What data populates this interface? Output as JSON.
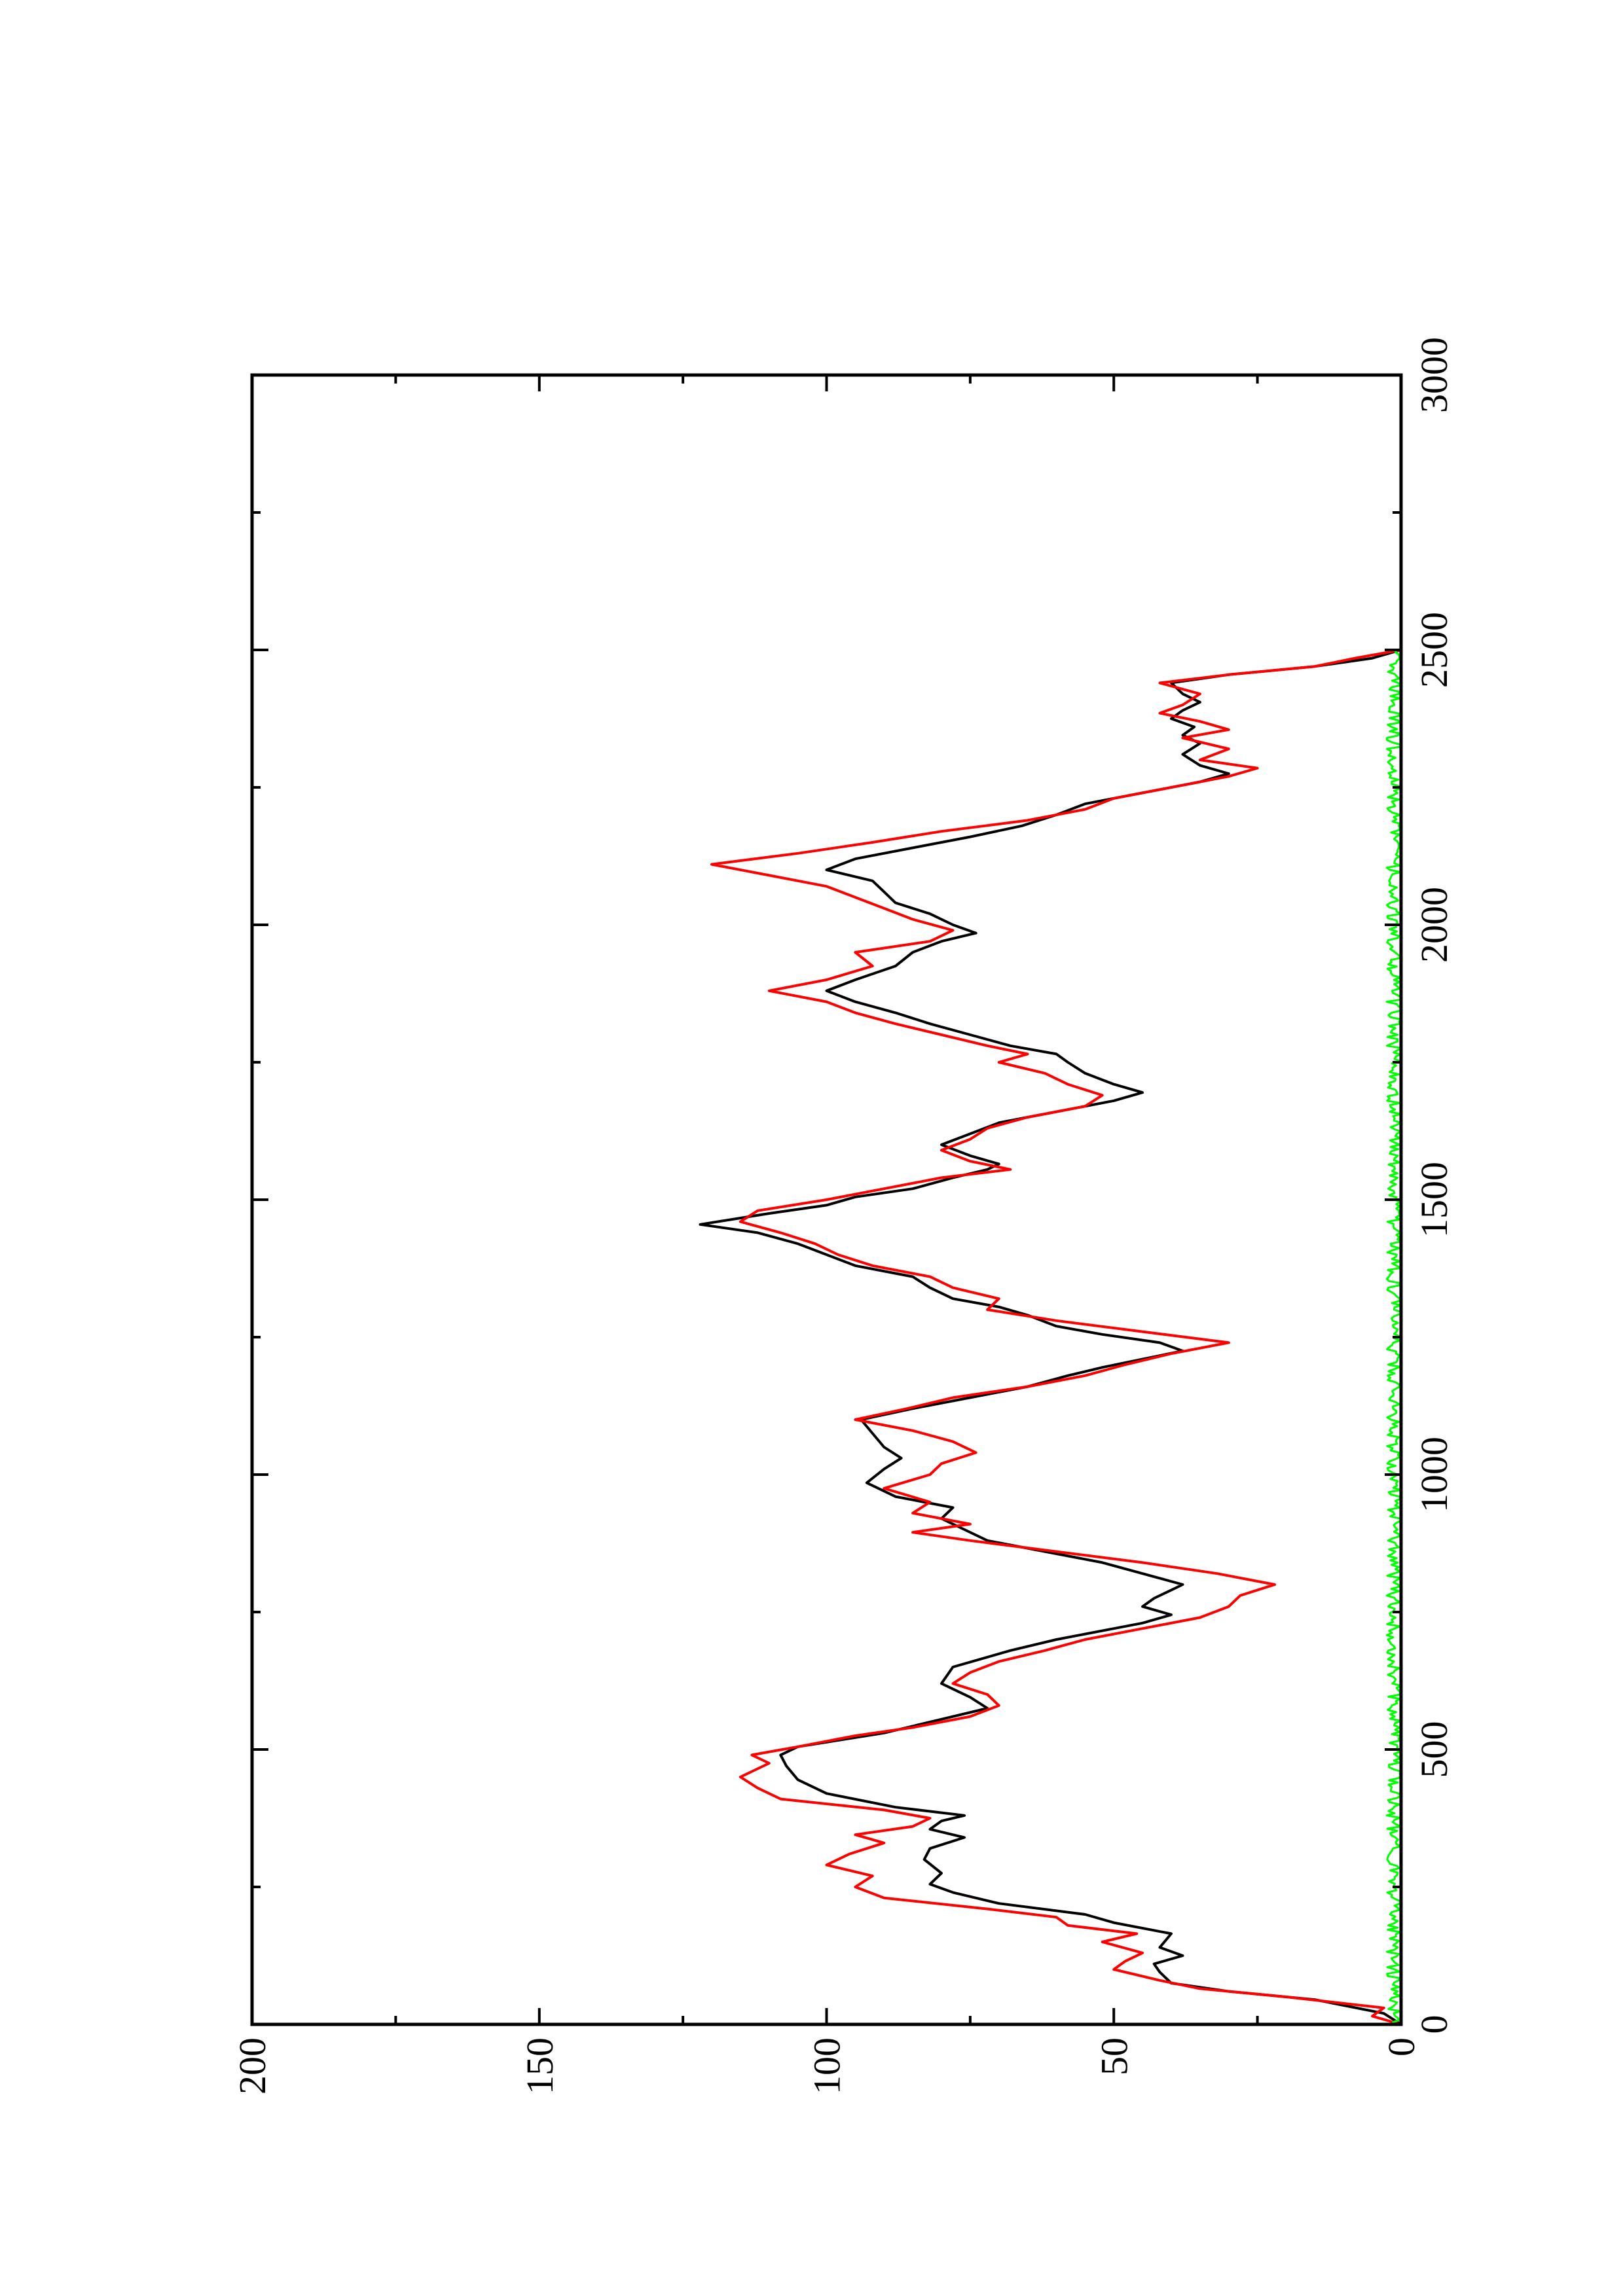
{
  "chart_data": {
    "type": "line",
    "title": "",
    "xlabel": "",
    "ylabel": "",
    "xlim": [
      0,
      3000
    ],
    "ylim": [
      0,
      200
    ],
    "x_major_ticks": [
      0,
      500,
      1000,
      1500,
      2000,
      2500,
      3000
    ],
    "x_tick_labels": [
      "0",
      "500",
      "1000",
      "1500",
      "2000",
      "2500",
      "3000"
    ],
    "y_major_ticks": [
      0,
      50,
      100,
      150,
      200
    ],
    "y_tick_labels": [
      "0",
      "50",
      "100",
      "150",
      "200"
    ],
    "grid": false,
    "legend": "none",
    "orientation": "page rotated 90 degrees counter-clockwise",
    "series": [
      {
        "color": "#000000",
        "points": [
          [
            0,
            0
          ],
          [
            20,
            3
          ],
          [
            45,
            15
          ],
          [
            60,
            30
          ],
          [
            75,
            40
          ],
          [
            95,
            42
          ],
          [
            110,
            43
          ],
          [
            125,
            38
          ],
          [
            140,
            42
          ],
          [
            165,
            40
          ],
          [
            185,
            50
          ],
          [
            200,
            55
          ],
          [
            220,
            70
          ],
          [
            240,
            78
          ],
          [
            255,
            82
          ],
          [
            275,
            80
          ],
          [
            300,
            83
          ],
          [
            320,
            82
          ],
          [
            340,
            76
          ],
          [
            355,
            82
          ],
          [
            370,
            80
          ],
          [
            380,
            76
          ],
          [
            395,
            88
          ],
          [
            420,
            100
          ],
          [
            445,
            105
          ],
          [
            470,
            107
          ],
          [
            490,
            108
          ],
          [
            505,
            105
          ],
          [
            530,
            90
          ],
          [
            555,
            80
          ],
          [
            575,
            72
          ],
          [
            595,
            75
          ],
          [
            620,
            80
          ],
          [
            650,
            78
          ],
          [
            680,
            68
          ],
          [
            700,
            60
          ],
          [
            720,
            50
          ],
          [
            730,
            45
          ],
          [
            745,
            40
          ],
          [
            760,
            45
          ],
          [
            775,
            43
          ],
          [
            790,
            40
          ],
          [
            800,
            38
          ],
          [
            820,
            45
          ],
          [
            840,
            52
          ],
          [
            860,
            62
          ],
          [
            880,
            72
          ],
          [
            900,
            76
          ],
          [
            920,
            80
          ],
          [
            940,
            78
          ],
          [
            960,
            88
          ],
          [
            985,
            93
          ],
          [
            1010,
            90
          ],
          [
            1030,
            87
          ],
          [
            1050,
            90
          ],
          [
            1075,
            92
          ],
          [
            1100,
            94
          ],
          [
            1120,
            85
          ],
          [
            1140,
            75
          ],
          [
            1160,
            65
          ],
          [
            1180,
            58
          ],
          [
            1195,
            52
          ],
          [
            1210,
            45
          ],
          [
            1225,
            38
          ],
          [
            1240,
            42
          ],
          [
            1255,
            52
          ],
          [
            1270,
            60
          ],
          [
            1290,
            65
          ],
          [
            1305,
            70
          ],
          [
            1320,
            78
          ],
          [
            1340,
            82
          ],
          [
            1360,
            85
          ],
          [
            1380,
            95
          ],
          [
            1400,
            100
          ],
          [
            1420,
            105
          ],
          [
            1440,
            112
          ],
          [
            1455,
            122
          ],
          [
            1475,
            110
          ],
          [
            1490,
            100
          ],
          [
            1505,
            95
          ],
          [
            1520,
            85
          ],
          [
            1540,
            78
          ],
          [
            1555,
            72
          ],
          [
            1565,
            70
          ],
          [
            1580,
            75
          ],
          [
            1600,
            80
          ],
          [
            1620,
            75
          ],
          [
            1640,
            70
          ],
          [
            1660,
            60
          ],
          [
            1680,
            50
          ],
          [
            1695,
            45
          ],
          [
            1710,
            50
          ],
          [
            1730,
            55
          ],
          [
            1750,
            58
          ],
          [
            1765,
            60
          ],
          [
            1780,
            68
          ],
          [
            1800,
            75
          ],
          [
            1820,
            82
          ],
          [
            1840,
            88
          ],
          [
            1860,
            95
          ],
          [
            1880,
            100
          ],
          [
            1900,
            95
          ],
          [
            1925,
            88
          ],
          [
            1950,
            85
          ],
          [
            1970,
            80
          ],
          [
            1985,
            74
          ],
          [
            2000,
            78
          ],
          [
            2020,
            82
          ],
          [
            2040,
            88
          ],
          [
            2060,
            90
          ],
          [
            2080,
            92
          ],
          [
            2100,
            100
          ],
          [
            2120,
            95
          ],
          [
            2140,
            85
          ],
          [
            2160,
            75
          ],
          [
            2180,
            66
          ],
          [
            2200,
            60
          ],
          [
            2220,
            55
          ],
          [
            2240,
            45
          ],
          [
            2260,
            35
          ],
          [
            2275,
            30
          ],
          [
            2290,
            35
          ],
          [
            2310,
            38
          ],
          [
            2330,
            35
          ],
          [
            2345,
            38
          ],
          [
            2360,
            36
          ],
          [
            2375,
            40
          ],
          [
            2390,
            38
          ],
          [
            2405,
            35
          ],
          [
            2420,
            38
          ],
          [
            2440,
            40
          ],
          [
            2455,
            30
          ],
          [
            2470,
            15
          ],
          [
            2485,
            5
          ],
          [
            2500,
            0
          ]
        ]
      },
      {
        "color": "#ff0000",
        "points": [
          [
            0,
            0
          ],
          [
            15,
            5
          ],
          [
            30,
            3
          ],
          [
            50,
            20
          ],
          [
            65,
            35
          ],
          [
            80,
            42
          ],
          [
            100,
            50
          ],
          [
            115,
            48
          ],
          [
            130,
            45
          ],
          [
            150,
            52
          ],
          [
            165,
            46
          ],
          [
            180,
            58
          ],
          [
            195,
            60
          ],
          [
            210,
            72
          ],
          [
            230,
            90
          ],
          [
            250,
            95
          ],
          [
            270,
            92
          ],
          [
            290,
            100
          ],
          [
            310,
            96
          ],
          [
            330,
            90
          ],
          [
            345,
            95
          ],
          [
            360,
            85
          ],
          [
            375,
            82
          ],
          [
            390,
            90
          ],
          [
            410,
            108
          ],
          [
            430,
            112
          ],
          [
            450,
            115
          ],
          [
            475,
            110
          ],
          [
            490,
            113
          ],
          [
            505,
            105
          ],
          [
            525,
            95
          ],
          [
            540,
            85
          ],
          [
            560,
            75
          ],
          [
            580,
            70
          ],
          [
            600,
            72
          ],
          [
            620,
            78
          ],
          [
            640,
            75
          ],
          [
            660,
            70
          ],
          [
            680,
            62
          ],
          [
            700,
            55
          ],
          [
            720,
            45
          ],
          [
            740,
            35
          ],
          [
            760,
            30
          ],
          [
            780,
            28
          ],
          [
            800,
            22
          ],
          [
            820,
            32
          ],
          [
            840,
            45
          ],
          [
            860,
            60
          ],
          [
            880,
            75
          ],
          [
            895,
            85
          ],
          [
            910,
            75
          ],
          [
            930,
            85
          ],
          [
            950,
            82
          ],
          [
            975,
            90
          ],
          [
            1000,
            82
          ],
          [
            1020,
            80
          ],
          [
            1040,
            74
          ],
          [
            1060,
            78
          ],
          [
            1080,
            85
          ],
          [
            1100,
            95
          ],
          [
            1120,
            86
          ],
          [
            1140,
            78
          ],
          [
            1160,
            65
          ],
          [
            1180,
            55
          ],
          [
            1200,
            48
          ],
          [
            1220,
            40
          ],
          [
            1240,
            30
          ],
          [
            1260,
            45
          ],
          [
            1280,
            60
          ],
          [
            1300,
            72
          ],
          [
            1320,
            70
          ],
          [
            1340,
            78
          ],
          [
            1360,
            82
          ],
          [
            1380,
            92
          ],
          [
            1400,
            98
          ],
          [
            1420,
            102
          ],
          [
            1440,
            108
          ],
          [
            1460,
            115
          ],
          [
            1480,
            112
          ],
          [
            1500,
            100
          ],
          [
            1520,
            90
          ],
          [
            1540,
            80
          ],
          [
            1555,
            68
          ],
          [
            1570,
            75
          ],
          [
            1590,
            80
          ],
          [
            1610,
            75
          ],
          [
            1630,
            72
          ],
          [
            1650,
            65
          ],
          [
            1670,
            55
          ],
          [
            1690,
            52
          ],
          [
            1710,
            58
          ],
          [
            1730,
            62
          ],
          [
            1750,
            70
          ],
          [
            1765,
            65
          ],
          [
            1780,
            72
          ],
          [
            1800,
            80
          ],
          [
            1820,
            88
          ],
          [
            1840,
            95
          ],
          [
            1860,
            100
          ],
          [
            1880,
            110
          ],
          [
            1900,
            100
          ],
          [
            1925,
            92
          ],
          [
            1950,
            95
          ],
          [
            1970,
            82
          ],
          [
            1990,
            78
          ],
          [
            2010,
            85
          ],
          [
            2030,
            90
          ],
          [
            2050,
            95
          ],
          [
            2070,
            100
          ],
          [
            2090,
            110
          ],
          [
            2110,
            120
          ],
          [
            2130,
            105
          ],
          [
            2150,
            92
          ],
          [
            2170,
            80
          ],
          [
            2190,
            65
          ],
          [
            2210,
            55
          ],
          [
            2230,
            50
          ],
          [
            2250,
            40
          ],
          [
            2270,
            30
          ],
          [
            2285,
            25
          ],
          [
            2300,
            35
          ],
          [
            2320,
            30
          ],
          [
            2340,
            38
          ],
          [
            2355,
            30
          ],
          [
            2370,
            35
          ],
          [
            2385,
            42
          ],
          [
            2400,
            38
          ],
          [
            2420,
            35
          ],
          [
            2440,
            42
          ],
          [
            2455,
            30
          ],
          [
            2470,
            15
          ],
          [
            2485,
            8
          ],
          [
            2500,
            0
          ]
        ]
      },
      {
        "color": "#00ff00",
        "noise_amplitude": 2.5,
        "x_range": [
          0,
          2500
        ]
      }
    ]
  }
}
